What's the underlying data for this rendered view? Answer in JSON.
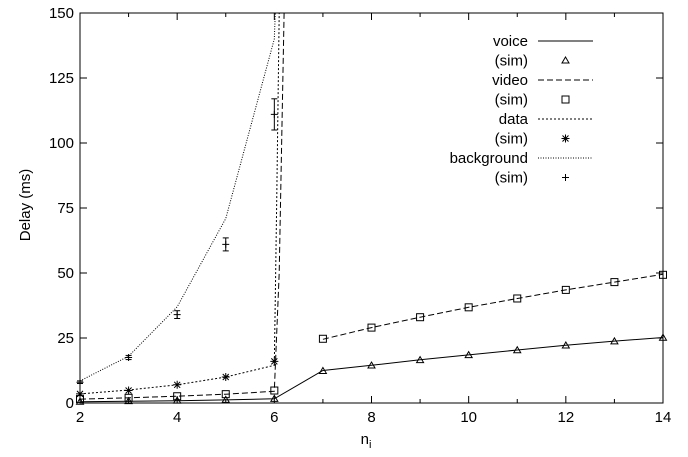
{
  "chart_data": {
    "type": "line",
    "title": "",
    "xlabel": "n",
    "xlabel_sub": "i",
    "ylabel": "Delay (ms)",
    "xlim": [
      2,
      14
    ],
    "ylim": [
      0,
      150
    ],
    "xticks": [
      "2",
      "4",
      "6",
      "8",
      "10",
      "12",
      "14"
    ],
    "yticks": [
      "0",
      "25",
      "50",
      "75",
      "100",
      "125",
      "150"
    ],
    "grid": false,
    "legend_position": "top-right",
    "series": [
      {
        "name": "voice",
        "line_style": "solid",
        "line": [
          [
            2,
            0.5
          ],
          [
            3,
            0.7
          ],
          [
            4,
            0.9
          ],
          [
            5,
            1.2
          ],
          [
            6,
            1.6
          ],
          [
            7,
            12.5
          ],
          [
            8,
            14.5
          ],
          [
            9,
            16.6
          ],
          [
            10,
            18.5
          ],
          [
            11,
            20.4
          ],
          [
            12,
            22.2
          ],
          [
            13,
            23.8
          ],
          [
            14,
            25.2
          ]
        ]
      },
      {
        "name": "(sim)",
        "marker": "triangle",
        "points": [
          [
            2,
            0.5
          ],
          [
            3,
            0.7
          ],
          [
            4,
            0.9
          ],
          [
            5,
            1.2
          ],
          [
            6,
            1.6
          ],
          [
            7,
            12.3
          ],
          [
            8,
            14.4
          ],
          [
            9,
            16.5
          ],
          [
            10,
            18.4
          ],
          [
            11,
            20.3
          ],
          [
            12,
            22.1
          ],
          [
            13,
            23.7
          ],
          [
            14,
            25.1
          ]
        ]
      },
      {
        "name": "video",
        "line_style": "dashed",
        "line": [
          [
            2,
            1.5
          ],
          [
            3,
            2.0
          ],
          [
            4,
            2.6
          ],
          [
            5,
            3.4
          ],
          [
            6,
            4.5
          ],
          [
            6.1,
            50
          ],
          [
            6.2,
            150
          ]
        ],
        "line2": [
          [
            7,
            24.5
          ],
          [
            8,
            29.0
          ],
          [
            9,
            33.0
          ],
          [
            10,
            36.8
          ],
          [
            11,
            40.2
          ],
          [
            12,
            43.5
          ],
          [
            13,
            46.5
          ],
          [
            14,
            49.5
          ]
        ]
      },
      {
        "name": "(sim)",
        "marker": "square",
        "points": [
          [
            2,
            1.5
          ],
          [
            3,
            2.0
          ],
          [
            4,
            2.6
          ],
          [
            5,
            3.4
          ],
          [
            6,
            4.8
          ],
          [
            7,
            24.7
          ],
          [
            8,
            29.0
          ],
          [
            9,
            33.0
          ],
          [
            10,
            36.8
          ],
          [
            11,
            40.2
          ],
          [
            12,
            43.5
          ],
          [
            13,
            46.5
          ],
          [
            14,
            49.3
          ]
        ]
      },
      {
        "name": "data",
        "line_style": "dotted",
        "line": [
          [
            2,
            3.5
          ],
          [
            3,
            5.0
          ],
          [
            4,
            7.0
          ],
          [
            5,
            10.0
          ],
          [
            6,
            14.5
          ],
          [
            6.05,
            80
          ],
          [
            6.1,
            150
          ]
        ]
      },
      {
        "name": "(sim)",
        "marker": "asterisk",
        "points": [
          [
            2,
            3.5
          ],
          [
            3,
            4.8
          ],
          [
            4,
            7.0
          ],
          [
            5,
            10.0
          ],
          [
            6,
            16.0
          ]
        ]
      },
      {
        "name": "background",
        "line_style": "fine-dotted",
        "line": [
          [
            2,
            8.5
          ],
          [
            3,
            18.0
          ],
          [
            4,
            37.0
          ],
          [
            5,
            71.0
          ],
          [
            6,
            140.0
          ],
          [
            6.02,
            150
          ]
        ]
      },
      {
        "name": "(sim)",
        "marker": "plus",
        "errorbars": true,
        "points": [
          [
            2,
            8.0,
            0.5
          ],
          [
            3,
            17.5,
            0.8
          ],
          [
            4,
            34.0,
            1.5
          ],
          [
            5,
            61.0,
            2.5
          ],
          [
            6,
            111.0,
            6.0
          ]
        ]
      }
    ]
  }
}
